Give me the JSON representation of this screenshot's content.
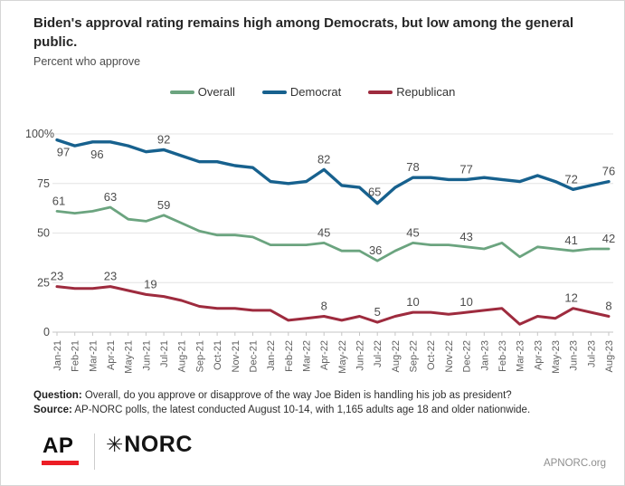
{
  "header": {
    "title": "Biden's approval rating remains high among Democrats, but low among the general public.",
    "subtitle": "Percent who approve"
  },
  "legend": [
    {
      "label": "Overall",
      "color": "#6ba47f"
    },
    {
      "label": "Democrat",
      "color": "#17618e"
    },
    {
      "label": "Republican",
      "color": "#9e2b3e"
    }
  ],
  "chart_data": {
    "type": "line",
    "title": "Biden's approval rating remains high among Democrats, but low among the general public.",
    "ylabel": "Percent who approve",
    "legend_position": "top",
    "grid": true,
    "ylim": [
      0,
      100
    ],
    "yticks": [
      0,
      25,
      50,
      75,
      100
    ],
    "ytick_labels": [
      "0",
      "25",
      "50",
      "75",
      "100%"
    ],
    "x": [
      "Jan-21",
      "Feb-21",
      "Mar-21",
      "Apr-21",
      "May-21",
      "Jun-21",
      "Jul-21",
      "Aug-21",
      "Sep-21",
      "Oct-21",
      "Nov-21",
      "Dec-21",
      "Jan-22",
      "Feb-22",
      "Mar-22",
      "Apr-22",
      "May-22",
      "Jun-22",
      "Jul-22",
      "Aug-22",
      "Sep-22",
      "Oct-22",
      "Nov-22",
      "Dec-22",
      "Jan-23",
      "Feb-23",
      "Mar-23",
      "Apr-23",
      "May-23",
      "Jun-23",
      "Jul-23",
      "Aug-23"
    ],
    "series": [
      {
        "name": "Overall",
        "color": "#6ba47f",
        "values": [
          61,
          60,
          61,
          63,
          57,
          56,
          59,
          55,
          51,
          49,
          49,
          48,
          44,
          44,
          44,
          45,
          41,
          41,
          36,
          41,
          45,
          44,
          44,
          43,
          42,
          45,
          38,
          43,
          42,
          41,
          42,
          42
        ]
      },
      {
        "name": "Democrat",
        "color": "#17618e",
        "values": [
          97,
          94,
          96,
          96,
          94,
          91,
          92,
          89,
          86,
          86,
          84,
          83,
          76,
          75,
          76,
          82,
          74,
          73,
          65,
          73,
          78,
          78,
          77,
          77,
          78,
          77,
          76,
          79,
          76,
          72,
          74,
          76
        ]
      },
      {
        "name": "Republican",
        "color": "#9e2b3e",
        "values": [
          23,
          22,
          22,
          23,
          21,
          19,
          18,
          16,
          13,
          12,
          12,
          11,
          11,
          6,
          7,
          8,
          6,
          8,
          5,
          8,
          10,
          10,
          9,
          10,
          11,
          12,
          4,
          8,
          7,
          12,
          10,
          8
        ]
      }
    ],
    "labeled_points": [
      {
        "series": "Overall",
        "month": "Jan-21",
        "value": 61
      },
      {
        "series": "Overall",
        "month": "Apr-21",
        "value": 63
      },
      {
        "series": "Overall",
        "month": "Jul-21",
        "value": 59
      },
      {
        "series": "Overall",
        "month": "Apr-22",
        "value": 45
      },
      {
        "series": "Overall",
        "month": "Jul-22",
        "value": 36
      },
      {
        "series": "Overall",
        "month": "Sep-22",
        "value": 45
      },
      {
        "series": "Overall",
        "month": "Dec-22",
        "value": 43
      },
      {
        "series": "Overall",
        "month": "Jun-23",
        "value": 41
      },
      {
        "series": "Overall",
        "month": "Aug-23",
        "value": 42
      },
      {
        "series": "Democrat",
        "month": "Jan-21",
        "value": 97
      },
      {
        "series": "Democrat",
        "month": "Mar-21",
        "value": 96
      },
      {
        "series": "Democrat",
        "month": "Jul-21",
        "value": 92
      },
      {
        "series": "Democrat",
        "month": "Apr-22",
        "value": 82
      },
      {
        "series": "Democrat",
        "month": "Jul-22",
        "value": 65
      },
      {
        "series": "Democrat",
        "month": "Sep-22",
        "value": 78
      },
      {
        "series": "Democrat",
        "month": "Dec-22",
        "value": 77
      },
      {
        "series": "Democrat",
        "month": "Jun-23",
        "value": 72
      },
      {
        "series": "Democrat",
        "month": "Aug-23",
        "value": 76
      },
      {
        "series": "Republican",
        "month": "Jan-21",
        "value": 23
      },
      {
        "series": "Republican",
        "month": "Apr-21",
        "value": 23
      },
      {
        "series": "Republican",
        "month": "Jun-21",
        "value": 19
      },
      {
        "series": "Republican",
        "month": "Apr-22",
        "value": 8
      },
      {
        "series": "Republican",
        "month": "Jul-22",
        "value": 5
      },
      {
        "series": "Republican",
        "month": "Sep-22",
        "value": 10
      },
      {
        "series": "Republican",
        "month": "Dec-22",
        "value": 10
      },
      {
        "series": "Republican",
        "month": "Jun-23",
        "value": 12
      },
      {
        "series": "Republican",
        "month": "Aug-23",
        "value": 8
      }
    ]
  },
  "footer": {
    "question_label": "Question:",
    "question_text": " Overall, do you approve or disapprove of the way Joe Biden is handling his job as president?",
    "source_label": "Source:",
    "source_text": " AP-NORC polls, the latest conducted August 10-14, with 1,165 adults age 18 and older nationwide."
  },
  "branding": {
    "ap_logo": "AP",
    "norc_star": "✳",
    "norc_text": "NORC",
    "site": "APNORC.org"
  }
}
